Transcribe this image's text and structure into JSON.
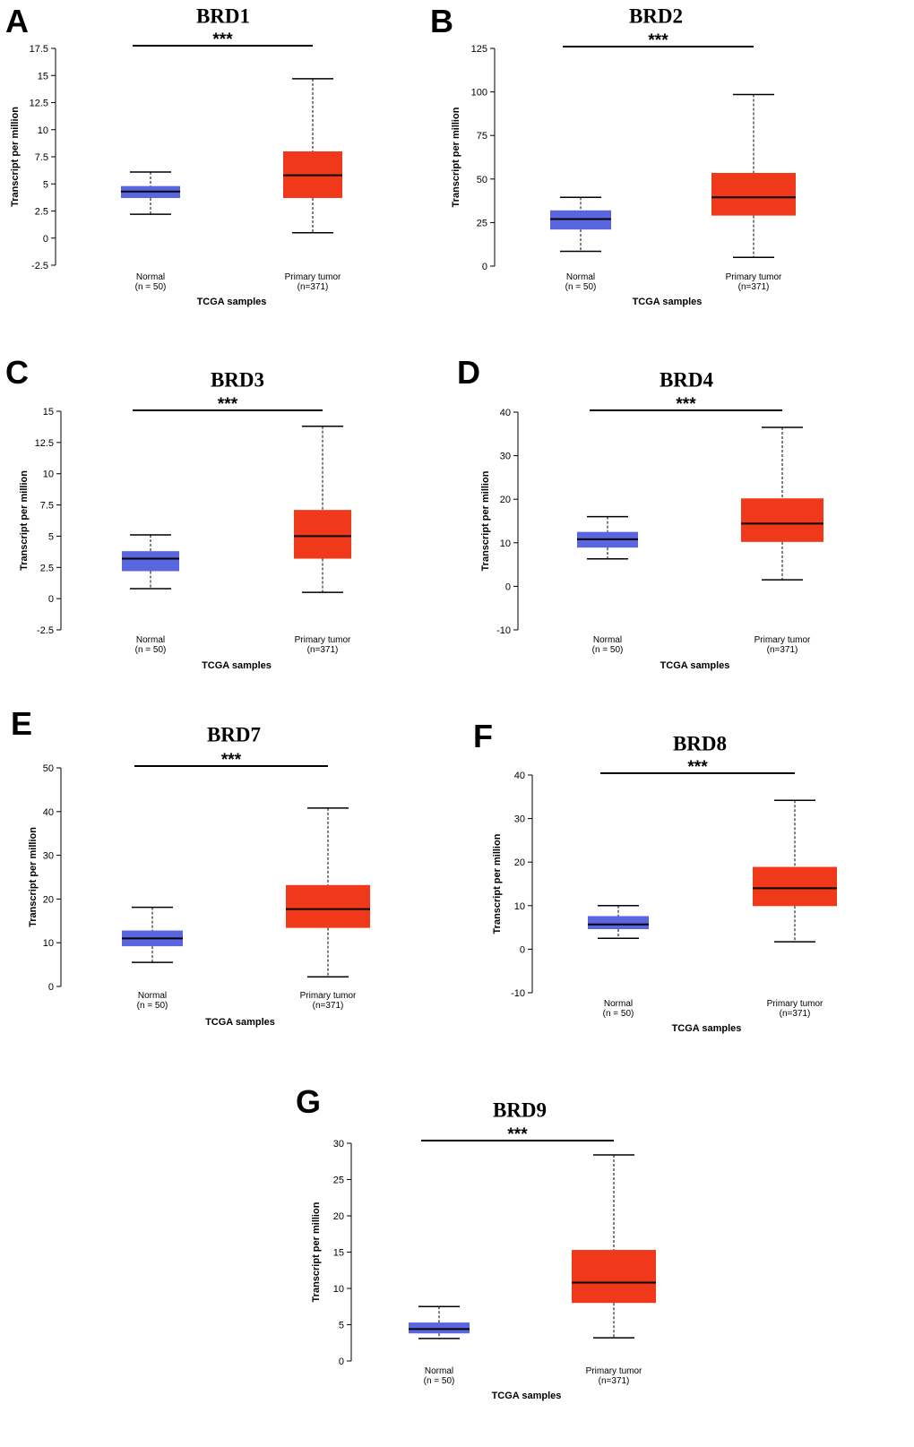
{
  "colors": {
    "normal": "#5a65e0",
    "tumor": "#f0381a",
    "line": "#000000"
  },
  "chart_data": [
    {
      "type": "box",
      "panel": "A",
      "title": "BRD1",
      "significance": "***",
      "ylabel": "Transcript per million",
      "xlabel": "TCGA samples",
      "yticks": [
        "17.5",
        "15",
        "12.5",
        "10",
        "7.5",
        "5",
        "2.5",
        "0",
        "-2.5"
      ],
      "ylim": [
        -2.5,
        17.5
      ],
      "categories": [
        {
          "name": "Normal",
          "n": "(n = 50)",
          "color": "normal",
          "min": 2.2,
          "q1": 3.7,
          "median": 4.3,
          "q3": 4.8,
          "max": 6.1
        },
        {
          "name": "Primary tumor",
          "n": "(n=371)",
          "color": "tumor",
          "min": 0.5,
          "q1": 3.7,
          "median": 5.8,
          "q3": 8.0,
          "max": 14.7
        }
      ]
    },
    {
      "type": "box",
      "panel": "B",
      "title": "BRD2",
      "significance": "***",
      "ylabel": "Transcript per million",
      "xlabel": "TCGA samples",
      "yticks": [
        "125",
        "100",
        "75",
        "50",
        "25",
        "0"
      ],
      "ylim": [
        0,
        125
      ],
      "categories": [
        {
          "name": "Normal",
          "n": "(n = 50)",
          "color": "normal",
          "min": 8.5,
          "q1": 21,
          "median": 27,
          "q3": 32,
          "max": 39.5
        },
        {
          "name": "Primary tumor",
          "n": "(n=371)",
          "color": "tumor",
          "min": 5,
          "q1": 29,
          "median": 39.5,
          "q3": 53.5,
          "max": 98.5
        }
      ]
    },
    {
      "type": "box",
      "panel": "C",
      "title": "BRD3",
      "significance": "***",
      "ylabel": "Transcript per million",
      "xlabel": "TCGA samples",
      "yticks": [
        "15",
        "12.5",
        "10",
        "7.5",
        "5",
        "2.5",
        "0",
        "-2.5"
      ],
      "ylim": [
        -2.5,
        15
      ],
      "categories": [
        {
          "name": "Normal",
          "n": "(n = 50)",
          "color": "normal",
          "min": 0.8,
          "q1": 2.2,
          "median": 3.2,
          "q3": 3.8,
          "max": 5.1
        },
        {
          "name": "Primary tumor",
          "n": "(n=371)",
          "color": "tumor",
          "min": 0.5,
          "q1": 3.2,
          "median": 5.0,
          "q3": 7.1,
          "max": 13.8
        }
      ]
    },
    {
      "type": "box",
      "panel": "D",
      "title": "BRD4",
      "significance": "***",
      "ylabel": "Transcript per million",
      "xlabel": "TCGA samples",
      "yticks": [
        "40",
        "30",
        "20",
        "10",
        "0",
        "-10"
      ],
      "ylim": [
        -10,
        40
      ],
      "categories": [
        {
          "name": "Normal",
          "n": "(n = 50)",
          "color": "normal",
          "min": 6.3,
          "q1": 8.9,
          "median": 10.8,
          "q3": 12.5,
          "max": 16
        },
        {
          "name": "Primary tumor",
          "n": "(n=371)",
          "color": "tumor",
          "min": 1.5,
          "q1": 10.2,
          "median": 14.4,
          "q3": 20.2,
          "max": 36.5
        }
      ]
    },
    {
      "type": "box",
      "panel": "E",
      "title": "BRD7",
      "significance": "***",
      "ylabel": "Transcript per million",
      "xlabel": "TCGA samples",
      "yticks": [
        "50",
        "40",
        "30",
        "20",
        "10",
        "0"
      ],
      "ylim": [
        0,
        50
      ],
      "categories": [
        {
          "name": "Normal",
          "n": "(n = 50)",
          "color": "normal",
          "min": 5.5,
          "q1": 9.2,
          "median": 11,
          "q3": 12.8,
          "max": 18.1
        },
        {
          "name": "Primary tumor",
          "n": "(n=371)",
          "color": "tumor",
          "min": 2.2,
          "q1": 13.4,
          "median": 17.7,
          "q3": 23.2,
          "max": 40.8
        }
      ]
    },
    {
      "type": "box",
      "panel": "F",
      "title": "BRD8",
      "significance": "***",
      "ylabel": "Transcript per million",
      "xlabel": "TCGA samples",
      "yticks": [
        "40",
        "30",
        "20",
        "10",
        "0",
        "-10"
      ],
      "ylim": [
        -10,
        40
      ],
      "categories": [
        {
          "name": "Normal",
          "n": "(n = 50)",
          "color": "normal",
          "min": 2.5,
          "q1": 4.6,
          "median": 5.7,
          "q3": 7.6,
          "max": 10
        },
        {
          "name": "Primary tumor",
          "n": "(n=371)",
          "color": "tumor",
          "min": 1.7,
          "q1": 9.9,
          "median": 14,
          "q3": 18.9,
          "max": 34.2
        }
      ]
    },
    {
      "type": "box",
      "panel": "G",
      "title": "BRD9",
      "significance": "***",
      "ylabel": "Transcript per million",
      "xlabel": "TCGA samples",
      "yticks": [
        "30",
        "25",
        "20",
        "15",
        "10",
        "5",
        "0"
      ],
      "ylim": [
        0,
        30
      ],
      "categories": [
        {
          "name": "Normal",
          "n": "(n = 50)",
          "color": "normal",
          "min": 3.1,
          "q1": 3.8,
          "median": 4.4,
          "q3": 5.3,
          "max": 7.5
        },
        {
          "name": "Primary tumor",
          "n": "(n=371)",
          "color": "tumor",
          "min": 3.2,
          "q1": 8,
          "median": 10.8,
          "q3": 15.3,
          "max": 28.4
        }
      ]
    }
  ]
}
